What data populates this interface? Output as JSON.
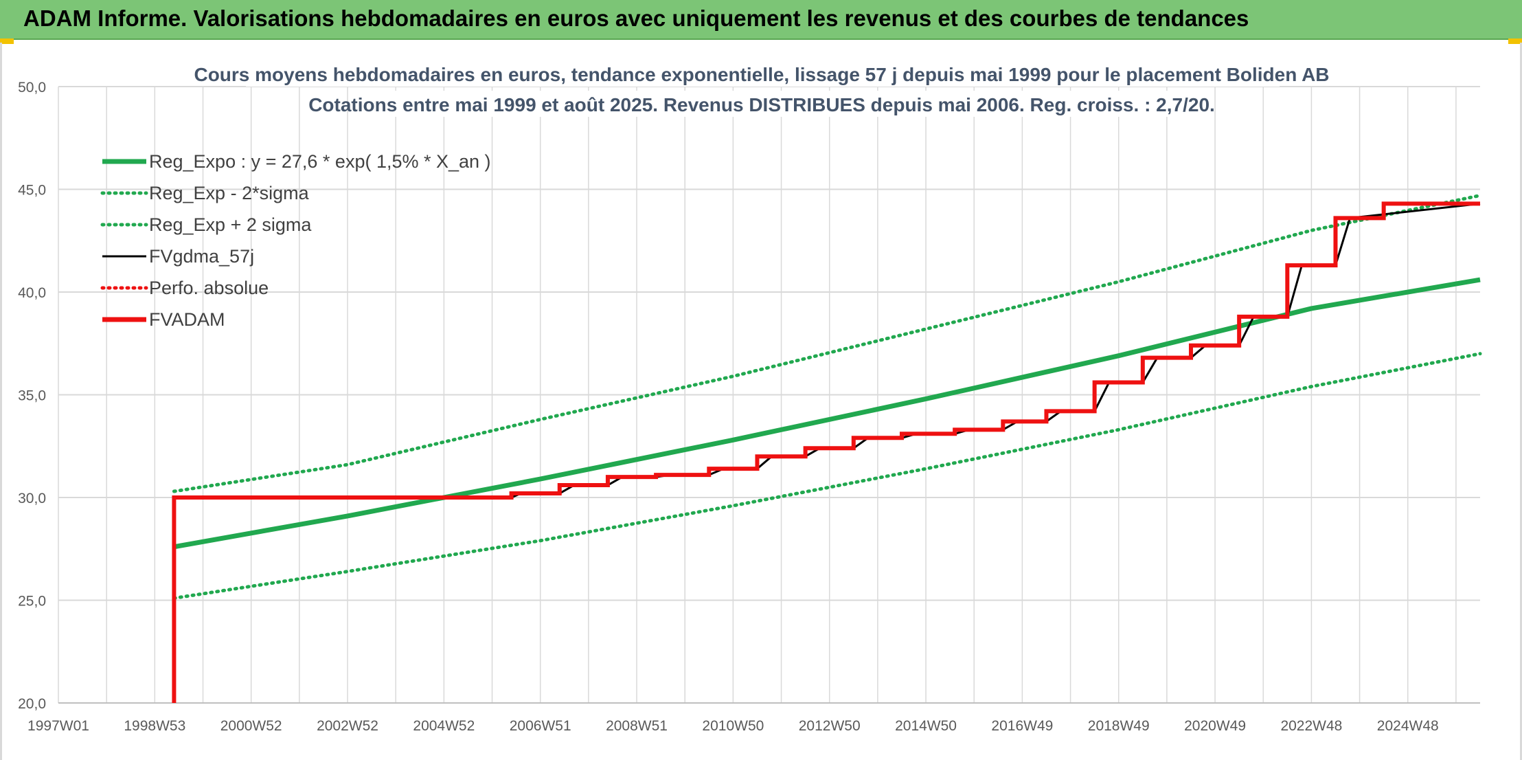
{
  "banner": {
    "title": "ADAM Informe. Valorisations hebdomadaires en euros avec uniquement les revenus et des courbes de tendances"
  },
  "colors": {
    "banner": "#7cc576",
    "reg_green": "#21a84f",
    "fvgdma_black": "#000000",
    "fvadam_red": "#ee1111",
    "grid": "#d9d9d9"
  },
  "chart_data": {
    "type": "line",
    "title": "Cours moyens hebdomadaires en euros, tendance exponentielle, lissage 57 j depuis mai 1999 pour le placement Boliden AB",
    "subtitle": "Cotations entre mai 1999 et août 2025. Revenus DISTRIBUES depuis mai 2006. Reg. croiss. : 2,7/20.",
    "xlabel": "",
    "ylabel": "",
    "xlim": [
      1997.0,
      2026.5
    ],
    "ylim": [
      20,
      50
    ],
    "y_ticks": [
      "20,0",
      "25,0",
      "30,0",
      "35,0",
      "40,0",
      "45,0",
      "50,0"
    ],
    "x_ticks": [
      {
        "label": "1997W01",
        "x": 1997.0
      },
      {
        "label": "1998W53",
        "x": 1999.0
      },
      {
        "label": "2000W52",
        "x": 2001.0
      },
      {
        "label": "2002W52",
        "x": 2003.0
      },
      {
        "label": "2004W52",
        "x": 2005.0
      },
      {
        "label": "2006W51",
        "x": 2007.0
      },
      {
        "label": "2008W51",
        "x": 2009.0
      },
      {
        "label": "2010W50",
        "x": 2011.0
      },
      {
        "label": "2012W50",
        "x": 2013.0
      },
      {
        "label": "2014W50",
        "x": 2015.0
      },
      {
        "label": "2016W49",
        "x": 2017.0
      },
      {
        "label": "2018W49",
        "x": 2019.0
      },
      {
        "label": "2020W49",
        "x": 2021.0
      },
      {
        "label": "2022W48",
        "x": 2023.0
      },
      {
        "label": "2024W48",
        "x": 2025.0
      }
    ],
    "grid": true,
    "legend_position": "top-left",
    "series": [
      {
        "name": "Reg_Expo : y = 27,6 * exp( 1,5% *  X_an )",
        "style": "solid-thick",
        "color": "#21a84f",
        "x": [
          1999.4,
          2003.0,
          2007.0,
          2011.0,
          2015.0,
          2019.0,
          2023.0,
          2026.5
        ],
        "y": [
          27.6,
          29.1,
          30.9,
          32.8,
          34.8,
          36.9,
          39.2,
          40.6
        ]
      },
      {
        "name": "Reg_Exp - 2*sigma",
        "style": "dotted",
        "color": "#21a84f",
        "x": [
          1999.4,
          2003.0,
          2007.0,
          2011.0,
          2015.0,
          2019.0,
          2023.0,
          2026.5
        ],
        "y": [
          25.1,
          26.4,
          27.9,
          29.6,
          31.4,
          33.3,
          35.4,
          37.0
        ]
      },
      {
        "name": "Reg_Exp + 2 sigma",
        "style": "dotted",
        "color": "#21a84f",
        "x": [
          1999.4,
          2003.0,
          2007.0,
          2011.0,
          2015.0,
          2019.0,
          2023.0,
          2026.5
        ],
        "y": [
          30.3,
          31.6,
          33.8,
          35.9,
          38.2,
          40.5,
          43.0,
          44.7
        ]
      },
      {
        "name": "FVgdma_57j",
        "style": "solid",
        "color": "#000000",
        "x": [
          1999.4,
          2006.4,
          2006.6,
          2007.4,
          2007.7,
          2008.4,
          2008.7,
          2009.4,
          2009.7,
          2010.5,
          2010.8,
          2011.5,
          2011.8,
          2012.5,
          2012.8,
          2013.5,
          2013.8,
          2014.5,
          2014.8,
          2015.6,
          2015.9,
          2016.6,
          2016.9,
          2017.5,
          2017.8,
          2018.5,
          2018.8,
          2019.5,
          2019.8,
          2020.5,
          2020.8,
          2021.5,
          2021.8,
          2022.5,
          2022.8,
          2023.5,
          2023.8,
          2026.5
        ],
        "y": [
          30.0,
          30.0,
          30.2,
          30.2,
          30.6,
          30.6,
          31.0,
          31.0,
          31.1,
          31.1,
          31.4,
          31.4,
          32.0,
          32.0,
          32.4,
          32.4,
          32.9,
          32.9,
          33.1,
          33.1,
          33.3,
          33.3,
          33.7,
          33.7,
          34.2,
          34.2,
          35.6,
          35.6,
          36.8,
          36.8,
          37.4,
          37.4,
          38.8,
          38.8,
          41.3,
          41.3,
          43.6,
          44.3
        ]
      },
      {
        "name": "Perfo. absolue",
        "style": "dotted",
        "color": "#ee1111",
        "x": [],
        "y": []
      },
      {
        "name": "FVADAM",
        "style": "step-thick",
        "color": "#ee1111",
        "x": [
          1999.4,
          1999.4,
          2006.4,
          2007.4,
          2008.4,
          2009.4,
          2010.5,
          2011.5,
          2012.5,
          2013.5,
          2014.5,
          2015.6,
          2016.6,
          2017.5,
          2018.5,
          2019.5,
          2020.5,
          2021.5,
          2022.5,
          2023.5,
          2024.5,
          2026.5
        ],
        "y": [
          20.0,
          30.0,
          30.2,
          30.6,
          31.0,
          31.1,
          31.4,
          32.0,
          32.4,
          32.9,
          33.1,
          33.3,
          33.7,
          34.2,
          35.6,
          36.8,
          37.4,
          38.8,
          41.3,
          43.6,
          44.3,
          44.3
        ]
      }
    ]
  }
}
